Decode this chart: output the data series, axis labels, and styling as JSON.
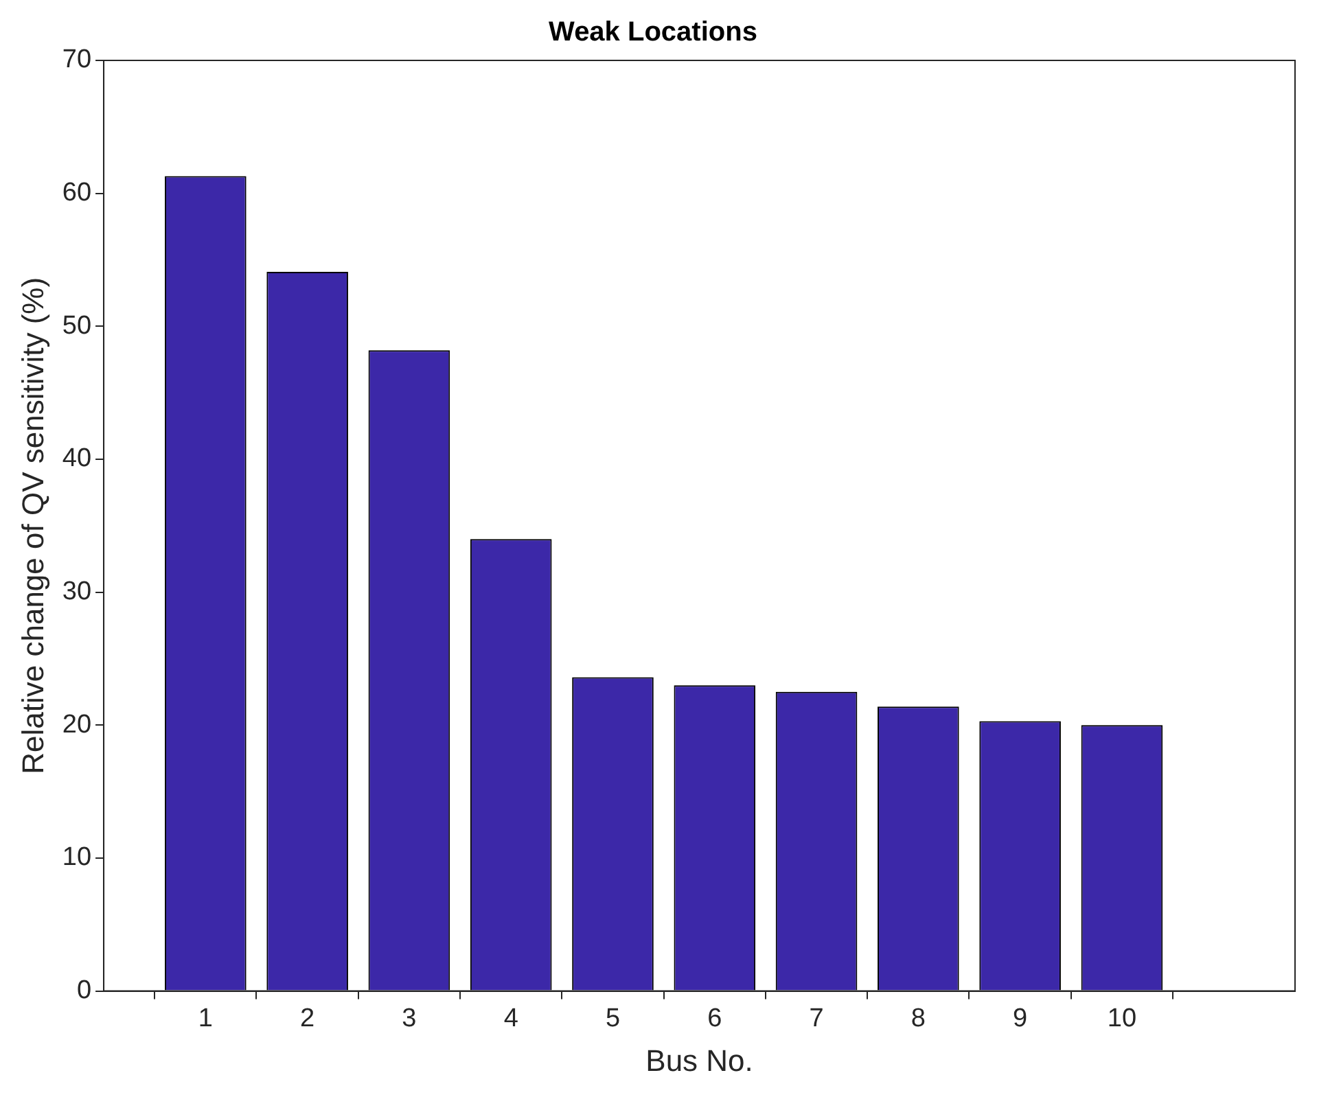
{
  "chart_data": {
    "type": "bar",
    "title": "Weak Locations",
    "xlabel": "Bus No.",
    "ylabel": "Relative change of QV sensitivity (%)",
    "x": [
      1,
      2,
      3,
      4,
      5,
      6,
      7,
      8,
      9,
      10
    ],
    "values": [
      61.3,
      54.1,
      48.2,
      34.0,
      23.6,
      23.0,
      22.5,
      21.4,
      20.3,
      20.0
    ],
    "color": "#3c28a8",
    "xlim": [
      0,
      11.7
    ],
    "xticks": [
      1,
      2,
      3,
      4,
      5,
      6,
      7,
      8,
      9,
      10
    ],
    "ylim": [
      0,
      70
    ],
    "yticks": [
      0,
      10,
      20,
      30,
      40,
      50,
      60,
      70
    ],
    "grid": false,
    "legend": false
  }
}
